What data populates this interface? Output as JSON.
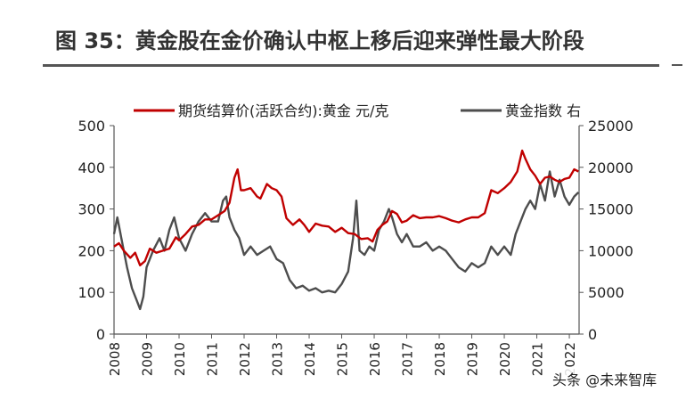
{
  "figure": {
    "title": "图 35：黄金股在金价确认中枢上移后迎来弹性最大阶段",
    "watermark": "头条 @未来智库"
  },
  "chart_data": {
    "type": "line",
    "x_ticks": [
      "2008",
      "2009",
      "2010",
      "2011",
      "2012",
      "2013",
      "2014",
      "2015",
      "2016",
      "2017",
      "2018",
      "2019",
      "2020",
      "2021",
      "2022"
    ],
    "xlim": [
      2008.0,
      2022.3
    ],
    "left_axis": {
      "ylim": [
        0,
        500
      ],
      "ticks": [
        "0",
        "100",
        "200",
        "300",
        "400",
        "500"
      ]
    },
    "right_axis": {
      "ylim": [
        0,
        25000
      ],
      "ticks": [
        "0",
        "5000",
        "10000",
        "15000",
        "20000",
        "25000"
      ]
    },
    "grid": false,
    "legend_position": "top",
    "series": [
      {
        "name": "期货结算价(活跃合约):黄金 元/克",
        "axis": "left",
        "color": "#c00000",
        "points": [
          [
            2008.0,
            210
          ],
          [
            2008.15,
            218
          ],
          [
            2008.3,
            200
          ],
          [
            2008.5,
            183
          ],
          [
            2008.65,
            195
          ],
          [
            2008.8,
            165
          ],
          [
            2008.95,
            175
          ],
          [
            2009.1,
            205
          ],
          [
            2009.3,
            195
          ],
          [
            2009.5,
            200
          ],
          [
            2009.7,
            205
          ],
          [
            2009.9,
            232
          ],
          [
            2010.0,
            225
          ],
          [
            2010.2,
            240
          ],
          [
            2010.4,
            258
          ],
          [
            2010.6,
            262
          ],
          [
            2010.8,
            275
          ],
          [
            2011.0,
            275
          ],
          [
            2011.2,
            285
          ],
          [
            2011.4,
            295
          ],
          [
            2011.55,
            315
          ],
          [
            2011.7,
            375
          ],
          [
            2011.8,
            395
          ],
          [
            2011.9,
            345
          ],
          [
            2012.0,
            345
          ],
          [
            2012.2,
            350
          ],
          [
            2012.4,
            330
          ],
          [
            2012.5,
            325
          ],
          [
            2012.7,
            360
          ],
          [
            2012.85,
            350
          ],
          [
            2013.0,
            345
          ],
          [
            2013.15,
            330
          ],
          [
            2013.3,
            278
          ],
          [
            2013.5,
            262
          ],
          [
            2013.7,
            275
          ],
          [
            2013.85,
            262
          ],
          [
            2014.0,
            245
          ],
          [
            2014.2,
            265
          ],
          [
            2014.4,
            260
          ],
          [
            2014.6,
            258
          ],
          [
            2014.8,
            245
          ],
          [
            2015.0,
            255
          ],
          [
            2015.2,
            242
          ],
          [
            2015.4,
            240
          ],
          [
            2015.6,
            228
          ],
          [
            2015.8,
            230
          ],
          [
            2015.95,
            222
          ],
          [
            2016.1,
            250
          ],
          [
            2016.25,
            262
          ],
          [
            2016.4,
            270
          ],
          [
            2016.55,
            295
          ],
          [
            2016.7,
            288
          ],
          [
            2016.85,
            268
          ],
          [
            2017.0,
            272
          ],
          [
            2017.2,
            285
          ],
          [
            2017.4,
            278
          ],
          [
            2017.6,
            280
          ],
          [
            2017.8,
            280
          ],
          [
            2018.0,
            283
          ],
          [
            2018.2,
            278
          ],
          [
            2018.4,
            272
          ],
          [
            2018.6,
            268
          ],
          [
            2018.8,
            275
          ],
          [
            2019.0,
            280
          ],
          [
            2019.2,
            280
          ],
          [
            2019.4,
            290
          ],
          [
            2019.6,
            345
          ],
          [
            2019.8,
            338
          ],
          [
            2020.0,
            350
          ],
          [
            2020.2,
            365
          ],
          [
            2020.4,
            390
          ],
          [
            2020.55,
            440
          ],
          [
            2020.65,
            420
          ],
          [
            2020.8,
            395
          ],
          [
            2020.95,
            380
          ],
          [
            2021.1,
            360
          ],
          [
            2021.25,
            375
          ],
          [
            2021.4,
            378
          ],
          [
            2021.55,
            370
          ],
          [
            2021.7,
            365
          ],
          [
            2021.85,
            372
          ],
          [
            2022.0,
            375
          ],
          [
            2022.15,
            395
          ],
          [
            2022.28,
            390
          ]
        ]
      },
      {
        "name": "黄金指数 右",
        "axis": "right",
        "color": "#4d4d4d",
        "points": [
          [
            2008.0,
            12000
          ],
          [
            2008.1,
            14000
          ],
          [
            2008.25,
            11000
          ],
          [
            2008.4,
            8000
          ],
          [
            2008.55,
            5500
          ],
          [
            2008.7,
            4000
          ],
          [
            2008.8,
            3000
          ],
          [
            2008.9,
            4500
          ],
          [
            2009.0,
            8000
          ],
          [
            2009.2,
            10000
          ],
          [
            2009.4,
            11500
          ],
          [
            2009.55,
            10000
          ],
          [
            2009.7,
            12500
          ],
          [
            2009.85,
            14000
          ],
          [
            2010.0,
            11500
          ],
          [
            2010.2,
            10000
          ],
          [
            2010.4,
            12000
          ],
          [
            2010.6,
            13500
          ],
          [
            2010.8,
            14500
          ],
          [
            2011.0,
            13500
          ],
          [
            2011.2,
            13500
          ],
          [
            2011.35,
            16000
          ],
          [
            2011.45,
            16500
          ],
          [
            2011.55,
            14000
          ],
          [
            2011.7,
            12500
          ],
          [
            2011.85,
            11500
          ],
          [
            2012.0,
            9500
          ],
          [
            2012.2,
            10500
          ],
          [
            2012.4,
            9500
          ],
          [
            2012.6,
            10000
          ],
          [
            2012.8,
            10500
          ],
          [
            2013.0,
            9000
          ],
          [
            2013.2,
            8500
          ],
          [
            2013.4,
            6500
          ],
          [
            2013.6,
            5500
          ],
          [
            2013.8,
            5800
          ],
          [
            2014.0,
            5200
          ],
          [
            2014.2,
            5500
          ],
          [
            2014.4,
            5000
          ],
          [
            2014.6,
            5200
          ],
          [
            2014.8,
            5000
          ],
          [
            2015.0,
            6000
          ],
          [
            2015.2,
            7500
          ],
          [
            2015.35,
            11500
          ],
          [
            2015.45,
            16000
          ],
          [
            2015.55,
            10000
          ],
          [
            2015.7,
            9500
          ],
          [
            2015.85,
            10500
          ],
          [
            2016.0,
            10000
          ],
          [
            2016.15,
            12500
          ],
          [
            2016.3,
            13500
          ],
          [
            2016.45,
            15000
          ],
          [
            2016.55,
            14000
          ],
          [
            2016.7,
            12000
          ],
          [
            2016.85,
            11000
          ],
          [
            2017.0,
            12000
          ],
          [
            2017.2,
            10500
          ],
          [
            2017.4,
            10500
          ],
          [
            2017.6,
            11000
          ],
          [
            2017.8,
            10000
          ],
          [
            2018.0,
            10500
          ],
          [
            2018.2,
            10000
          ],
          [
            2018.4,
            9000
          ],
          [
            2018.6,
            8000
          ],
          [
            2018.8,
            7500
          ],
          [
            2019.0,
            8500
          ],
          [
            2019.2,
            8000
          ],
          [
            2019.4,
            8500
          ],
          [
            2019.6,
            10500
          ],
          [
            2019.8,
            9500
          ],
          [
            2020.0,
            10500
          ],
          [
            2020.2,
            9500
          ],
          [
            2020.35,
            12000
          ],
          [
            2020.5,
            13500
          ],
          [
            2020.65,
            15000
          ],
          [
            2020.8,
            16000
          ],
          [
            2020.95,
            15000
          ],
          [
            2021.1,
            18000
          ],
          [
            2021.25,
            16000
          ],
          [
            2021.4,
            19500
          ],
          [
            2021.55,
            16500
          ],
          [
            2021.7,
            18500
          ],
          [
            2021.85,
            16500
          ],
          [
            2022.0,
            15500
          ],
          [
            2022.15,
            16500
          ],
          [
            2022.28,
            17000
          ]
        ]
      }
    ]
  }
}
